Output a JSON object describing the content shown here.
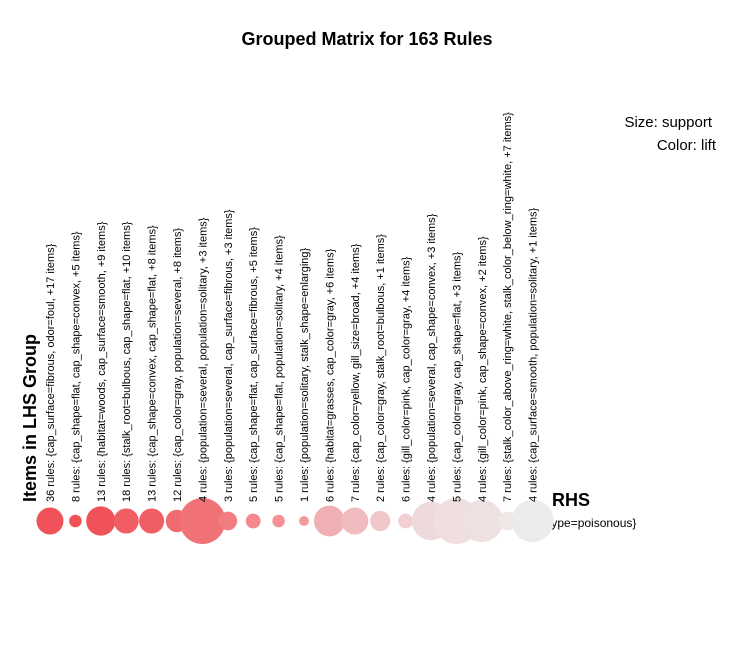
{
  "chart_data": {
    "type": "scatter",
    "title": "Grouped Matrix for 163 Rules",
    "legend": {
      "size": "Size: support",
      "color": "Color: lift"
    },
    "ylabel": "Items in LHS Group",
    "rhs_title": "RHS",
    "rhs_item": "{type=poisonous}",
    "grid": false,
    "groups": [
      {
        "label": "36 rules: {cap_surface=fibrous, odor=foul, +17 items}",
        "support": 0.5,
        "lift": 1.0,
        "color": "#ef5258"
      },
      {
        "label": "8 rules: {cap_shape=flat, cap_shape=convex, +5 items}",
        "support": 0.12,
        "lift": 1.0,
        "color": "#ef5258"
      },
      {
        "label": "13 rules: {habitat=woods, cap_surface=smooth, +9 items}",
        "support": 0.56,
        "lift": 0.98,
        "color": "#ef5258"
      },
      {
        "label": "18 rules: {stalk_root=bulbous, cap_shape=flat, +10 items}",
        "support": 0.45,
        "lift": 0.95,
        "color": "#f05e63"
      },
      {
        "label": "13 rules: {cap_shape=convex, cap_shape=flat, +8 items}",
        "support": 0.45,
        "lift": 0.95,
        "color": "#f05e63"
      },
      {
        "label": "12 rules: {cap_color=gray, population=several, +8 items}",
        "support": 0.38,
        "lift": 0.92,
        "color": "#f16a6e"
      },
      {
        "label": "4 rules: {population=several, population=solitary, +3 items}",
        "support": 1.0,
        "lift": 0.9,
        "color": "#f07176"
      },
      {
        "label": "3 rules: {population=several, cap_surface=fibrous, +3 items}",
        "support": 0.28,
        "lift": 0.86,
        "color": "#f27d81"
      },
      {
        "label": "5 rules: {cap_shape=flat, cap_surface=fibrous, +5 items}",
        "support": 0.18,
        "lift": 0.84,
        "color": "#f3898d"
      },
      {
        "label": "5 rules: {cap_shape=flat, population=solitary, +4 items}",
        "support": 0.12,
        "lift": 0.82,
        "color": "#f49195"
      },
      {
        "label": "1 rules: {population=solitary, stalk_shape=enlarging}",
        "support": 0.05,
        "lift": 0.8,
        "color": "#f39aa0"
      },
      {
        "label": "6 rules: {habitat=grasses, cap_color=gray, +6 items}",
        "support": 0.6,
        "lift": 0.7,
        "color": "#efb0b4"
      },
      {
        "label": "7 rules: {cap_color=yellow, gill_size=broad, +4 items}",
        "support": 0.5,
        "lift": 0.68,
        "color": "#f0bcbf"
      },
      {
        "label": "2 rules: {cap_color=gray, stalk_root=bulbous, +1 items}",
        "support": 0.32,
        "lift": 0.64,
        "color": "#f1c8ca"
      },
      {
        "label": "6 rules: {gill_color=pink, cap_color=gray, +4 items}",
        "support": 0.18,
        "lift": 0.62,
        "color": "#f2d0d2"
      },
      {
        "label": "4 rules: {population=several, cap_shape=convex, +3 items}",
        "support": 0.8,
        "lift": 0.58,
        "color": "#eed9db"
      },
      {
        "label": "5 rules: {cap_color=gray, cap_shape=flat, +3 items}",
        "support": 1.0,
        "lift": 0.56,
        "color": "#efdfe0"
      },
      {
        "label": "4 rules: {gill_color=pink, cap_shape=convex, +2 items}",
        "support": 0.9,
        "lift": 0.55,
        "color": "#efe1e2"
      },
      {
        "label": "7 rules: {stalk_color_above_ring=white, stalk_color_below_ring=white, +7 items}",
        "support": 0.28,
        "lift": 0.53,
        "color": "#eee6e7"
      },
      {
        "label": "4 rules: {cap_surface=smooth, population=solitary, +1 items}",
        "support": 0.9,
        "lift": 0.52,
        "color": "#ebebeb"
      }
    ]
  }
}
